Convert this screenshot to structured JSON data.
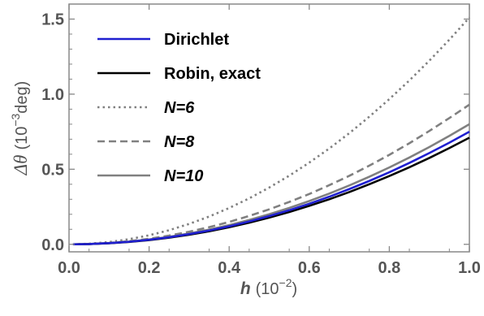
{
  "chart_data": {
    "type": "line",
    "title": "",
    "xlabel": {
      "symbol": "h",
      "unit_base": "(10",
      "unit_exp": "−2",
      "unit_close": ")"
    },
    "ylabel": {
      "symbol": "Δθ",
      "unit_base": "(10",
      "unit_exp": "−3",
      "unit_tail": "deg)"
    },
    "xlim": [
      0,
      1.0
    ],
    "ylim": [
      -0.05,
      1.6
    ],
    "xticks": [
      0.0,
      0.2,
      0.4,
      0.6,
      0.8,
      1.0
    ],
    "xtick_labels": [
      "0.0",
      "0.2",
      "0.4",
      "0.6",
      "0.8",
      "1.0"
    ],
    "yticks": [
      0.0,
      0.5,
      1.0,
      1.5
    ],
    "ytick_labels": [
      "0.0",
      "0.5",
      "1.0",
      "1.5"
    ],
    "grid": false,
    "legend_position": "top-left",
    "x": [
      0.01,
      0.05,
      0.1,
      0.15,
      0.2,
      0.25,
      0.3,
      0.35,
      0.4,
      0.45,
      0.5,
      0.55,
      0.6,
      0.65,
      0.7,
      0.75,
      0.8,
      0.85,
      0.9,
      0.95,
      1.0
    ],
    "series": [
      {
        "name": "Dirichlet",
        "color": "#1f1fd0",
        "dash": "solid",
        "values": [
          0.0,
          0.002,
          0.008,
          0.017,
          0.03,
          0.047,
          0.068,
          0.092,
          0.12,
          0.152,
          0.188,
          0.227,
          0.27,
          0.317,
          0.368,
          0.422,
          0.48,
          0.542,
          0.608,
          0.677,
          0.75
        ]
      },
      {
        "name": "Robin, exact",
        "color": "#000000",
        "dash": "solid",
        "values": [
          0.0,
          0.002,
          0.007,
          0.016,
          0.028,
          0.044,
          0.064,
          0.087,
          0.114,
          0.144,
          0.178,
          0.215,
          0.256,
          0.3,
          0.348,
          0.4,
          0.455,
          0.513,
          0.575,
          0.641,
          0.71
        ]
      },
      {
        "name": "N=6",
        "color": "#808080",
        "dash": "dotted",
        "values": [
          0.0,
          0.004,
          0.015,
          0.034,
          0.06,
          0.094,
          0.136,
          0.185,
          0.242,
          0.306,
          0.378,
          0.457,
          0.544,
          0.638,
          0.74,
          0.85,
          0.967,
          1.091,
          1.223,
          1.363,
          1.51
        ]
      },
      {
        "name": "N=8",
        "color": "#808080",
        "dash": "dashed",
        "values": [
          0.0,
          0.002,
          0.009,
          0.021,
          0.037,
          0.058,
          0.084,
          0.114,
          0.149,
          0.189,
          0.233,
          0.282,
          0.335,
          0.394,
          0.456,
          0.524,
          0.596,
          0.673,
          0.755,
          0.841,
          0.93
        ]
      },
      {
        "name": "N=10",
        "color": "#808080",
        "dash": "solid",
        "values": [
          0.0,
          0.002,
          0.008,
          0.018,
          0.032,
          0.05,
          0.072,
          0.098,
          0.128,
          0.162,
          0.2,
          0.242,
          0.288,
          0.338,
          0.392,
          0.45,
          0.512,
          0.578,
          0.648,
          0.722,
          0.8
        ]
      }
    ]
  }
}
